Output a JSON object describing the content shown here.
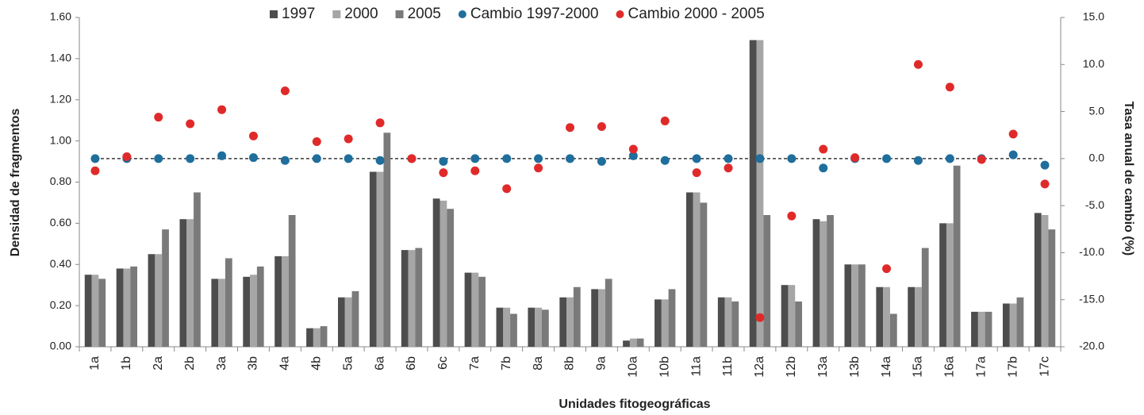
{
  "chart_data": {
    "type": "bar",
    "xlabel": "Unidades fitogeográficas",
    "ylabel": "Densidad de fragmentos",
    "y2label": "Tasa anual de cambio (%)",
    "categories": [
      "1a",
      "1b",
      "2a",
      "2b",
      "3a",
      "3b",
      "4a",
      "4b",
      "5a",
      "6a",
      "6b",
      "6c",
      "7a",
      "7b",
      "8a",
      "8b",
      "9a",
      "10a",
      "10b",
      "11a",
      "11b",
      "12a",
      "12b",
      "13a",
      "13b",
      "14a",
      "15a",
      "16a",
      "17a",
      "17b",
      "17c"
    ],
    "series": [
      {
        "name": "1997",
        "type": "bar",
        "color": "#4d4d4d",
        "values": [
          0.35,
          0.38,
          0.45,
          0.62,
          0.33,
          0.34,
          0.44,
          0.09,
          0.24,
          0.85,
          0.47,
          0.72,
          0.36,
          0.19,
          0.19,
          0.24,
          0.28,
          0.03,
          0.23,
          0.75,
          0.24,
          1.49,
          0.3,
          0.62,
          0.4,
          0.29,
          0.29,
          0.6,
          0.17,
          0.21,
          0.65
        ]
      },
      {
        "name": "2000",
        "type": "bar",
        "color": "#a6a6a6",
        "values": [
          0.35,
          0.38,
          0.45,
          0.62,
          0.33,
          0.35,
          0.44,
          0.09,
          0.24,
          0.85,
          0.47,
          0.71,
          0.36,
          0.19,
          0.19,
          0.24,
          0.28,
          0.04,
          0.23,
          0.75,
          0.24,
          1.49,
          0.3,
          0.61,
          0.4,
          0.29,
          0.29,
          0.6,
          0.17,
          0.21,
          0.64
        ]
      },
      {
        "name": "2005",
        "type": "bar",
        "color": "#7a7a7a",
        "values": [
          0.33,
          0.39,
          0.57,
          0.75,
          0.43,
          0.39,
          0.64,
          0.1,
          0.27,
          1.04,
          0.48,
          0.67,
          0.34,
          0.16,
          0.18,
          0.29,
          0.33,
          0.04,
          0.28,
          0.7,
          0.22,
          0.64,
          0.22,
          0.64,
          0.4,
          0.16,
          0.48,
          0.88,
          0.17,
          0.24,
          0.57
        ]
      },
      {
        "name": "Cambio 1997-2000",
        "type": "scatter",
        "axis": "y2",
        "color": "#1f6e9c",
        "values": [
          0,
          0,
          0,
          0,
          0.3,
          0.1,
          -0.2,
          0,
          0,
          -0.2,
          0,
          -0.3,
          0,
          0,
          0,
          0,
          -0.3,
          0.3,
          -0.2,
          0,
          0,
          0,
          0,
          -1.0,
          0,
          0,
          -0.2,
          0,
          0,
          0.4,
          -0.7
        ]
      },
      {
        "name": "Cambio 2000 - 2005",
        "type": "scatter",
        "axis": "y2",
        "color": "#e02a2a",
        "values": [
          -1.3,
          0.2,
          4.4,
          3.7,
          5.2,
          2.4,
          7.2,
          1.8,
          2.1,
          3.8,
          0,
          -1.5,
          -1.3,
          -3.2,
          -1.0,
          3.3,
          3.4,
          1.0,
          4.0,
          -1.5,
          -1.0,
          -16.9,
          -6.1,
          1.0,
          0.1,
          -11.7,
          10.0,
          7.6,
          -0.1,
          2.6,
          -2.7
        ]
      }
    ],
    "ylim": [
      0,
      1.6
    ],
    "yticks": [
      {
        "value": 0,
        "label": "0.00"
      },
      {
        "value": 0.2,
        "label": "0.20"
      },
      {
        "value": 0.4,
        "label": "0.40"
      },
      {
        "value": 0.6,
        "label": "0.60"
      },
      {
        "value": 0.8,
        "label": "0.80"
      },
      {
        "value": 1.0,
        "label": "1.00"
      },
      {
        "value": 1.2,
        "label": "1.20"
      },
      {
        "value": 1.4,
        "label": "1.40"
      },
      {
        "value": 1.6,
        "label": "1.60"
      }
    ],
    "y2lim": [
      -20,
      15
    ],
    "y2ticks": [
      {
        "value": 15,
        "label": "15.0"
      },
      {
        "value": 10,
        "label": "10.0"
      },
      {
        "value": 5,
        "label": "5.0"
      },
      {
        "value": 0,
        "label": "0.0"
      },
      {
        "value": -5,
        "label": "-5.0"
      },
      {
        "value": -10,
        "label": "-10.0"
      },
      {
        "value": -15,
        "label": "-15.0"
      },
      {
        "value": -20,
        "label": "-20.0"
      }
    ],
    "grid": false,
    "legend": "top"
  }
}
